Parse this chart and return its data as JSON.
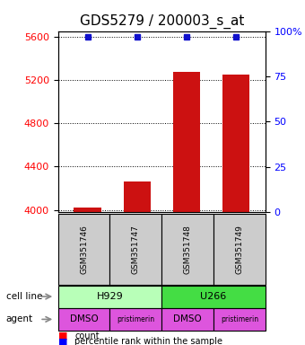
{
  "title": "GDS5279 / 200003_s_at",
  "samples": [
    "GSM351746",
    "GSM351747",
    "GSM351748",
    "GSM351749"
  ],
  "counts": [
    4020,
    4260,
    5270,
    5250
  ],
  "percentile_ranks": [
    100,
    100,
    100,
    100
  ],
  "ylim_left": [
    3980,
    5650
  ],
  "yticks_left": [
    4000,
    4400,
    4800,
    5200,
    5600
  ],
  "yticks_right": [
    0,
    25,
    50,
    75,
    100
  ],
  "cell_lines": [
    [
      "H929",
      0,
      2
    ],
    [
      "U266",
      2,
      4
    ]
  ],
  "cell_line_colors": [
    "#b8ffb8",
    "#44dd44"
  ],
  "agents": [
    "DMSO",
    "pristimerin",
    "DMSO",
    "pristimerin"
  ],
  "agent_color": "#dd55dd",
  "bar_color": "#cc1111",
  "percentile_color": "#1111cc",
  "sample_box_color": "#cccccc",
  "background_color": "#ffffff",
  "title_fontsize": 11,
  "tick_fontsize": 8,
  "label_fontsize": 8
}
